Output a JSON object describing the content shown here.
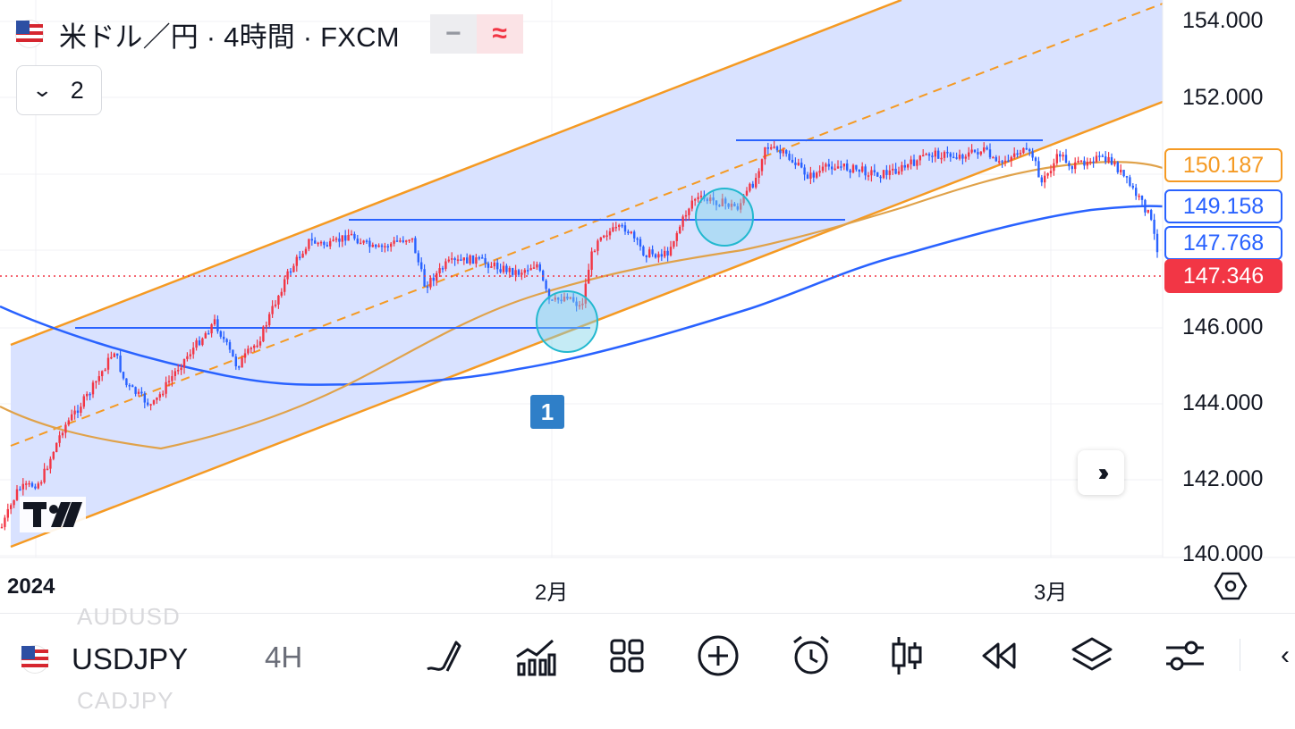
{
  "header": {
    "title": "米ドル／円 · 4時間 · FXCM",
    "toggle_minus": "−",
    "toggle_wave": "≈",
    "collapse_count": "2"
  },
  "price_axis": {
    "ticks": [
      "154.000",
      "152.000",
      "146.000",
      "144.000",
      "142.000",
      "140.000"
    ],
    "labels": {
      "ma_orange": "150.187",
      "ma_blue": "149.158",
      "line_blue": "147.768",
      "last_price": "147.346"
    }
  },
  "time_axis": {
    "labels": [
      "2024",
      "2月",
      "3月"
    ]
  },
  "annotations": {
    "marker": "1"
  },
  "bottom_toolbar": {
    "ghost_top": "AUDUSD",
    "ghost_bottom": "CADJPY",
    "symbol": "USDJPY",
    "interval": "4H",
    "tools": [
      "draw-icon",
      "indicators-icon",
      "layout-icon",
      "add-icon",
      "alert-icon",
      "candles-icon",
      "replay-icon",
      "layers-icon",
      "settings-sliders-icon"
    ],
    "more": "‹"
  },
  "colors": {
    "up": "#f23645",
    "down": "#2962ff",
    "channel": "#f59a23",
    "channel_fill": "#d7e0ff",
    "ma_blue": "#2962ff",
    "ma_orange": "#e0a24a"
  },
  "chart_data": {
    "type": "candlestick",
    "symbol": "USDJPY",
    "interval": "4H",
    "y_range": [
      140,
      154.5
    ],
    "price_levels": {
      "ma_orange": 150.187,
      "ma_blue": 149.158,
      "horizontal_blue": 147.768,
      "last": 147.346
    },
    "horizontal_lines": [
      146.0,
      148.8,
      150.9
    ],
    "x_labels": [
      "2024",
      "2月",
      "3月"
    ]
  }
}
